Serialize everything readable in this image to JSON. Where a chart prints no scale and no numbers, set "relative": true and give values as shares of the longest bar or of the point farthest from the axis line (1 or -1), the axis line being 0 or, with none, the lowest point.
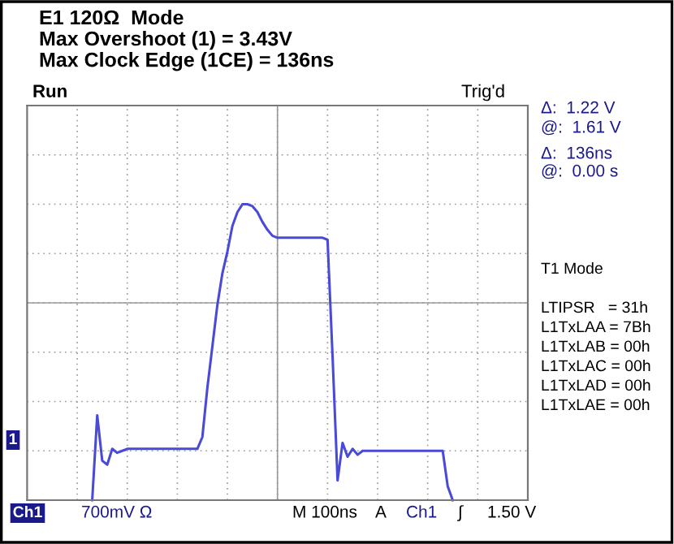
{
  "chart_data": {
    "type": "line",
    "relative": true,
    "title": "E1 120Ω  Mode",
    "subtitle": "Max Overshoot (1) = 3.43V\nMax Clock Edge (1CE) = 136ns",
    "categories": [
      null,
      null,
      null,
      null,
      null,
      null,
      null,
      null,
      null,
      null,
      null,
      null,
      null,
      null,
      null,
      null,
      null,
      null,
      null,
      null,
      null,
      null,
      null,
      null,
      null,
      null,
      null,
      null,
      null,
      null,
      null,
      null,
      null,
      null,
      null,
      null,
      null,
      null,
      null,
      null,
      null,
      null,
      null,
      null,
      null,
      null,
      null,
      null,
      null,
      null,
      null,
      null,
      null,
      null,
      null,
      null,
      null,
      null,
      null,
      null,
      null,
      null,
      null,
      null,
      null,
      null,
      null,
      null,
      null,
      null,
      null,
      null,
      null,
      null,
      null,
      null,
      null,
      null,
      null,
      null,
      null,
      null,
      null,
      null,
      null,
      null,
      null,
      null,
      null,
      null,
      null,
      null,
      null,
      null,
      null,
      null,
      null,
      null,
      null,
      null,
      null
    ],
    "series": [
      {
        "color": "#4a4ad8",
        "values": [
          null,
          null,
          null,
          null,
          null,
          null,
          null,
          null,
          null,
          null,
          null,
          null,
          null,
          -1,
          -0.57,
          -0.8,
          -0.82,
          -0.74,
          -0.76,
          -0.75,
          -0.74,
          -0.74,
          -0.74,
          -0.74,
          -0.74,
          -0.74,
          -0.74,
          -0.74,
          -0.74,
          -0.74,
          -0.74,
          -0.74,
          -0.74,
          -0.74,
          -0.74,
          -0.68,
          -0.43,
          -0.22,
          -0.01,
          0.15,
          0.26,
          0.39,
          0.46,
          0.5,
          0.5,
          0.49,
          0.46,
          0.41,
          0.37,
          0.34,
          0.33,
          0.33,
          0.33,
          0.33,
          0.33,
          0.33,
          0.33,
          0.33,
          0.33,
          0.33,
          0.32,
          -0.27,
          -0.9,
          -0.71,
          -0.78,
          -0.74,
          -0.77,
          -0.75,
          -0.75,
          -0.75,
          -0.75,
          -0.75,
          -0.75,
          -0.75,
          -0.75,
          -0.75,
          -0.75,
          -0.75,
          -0.75,
          -0.75,
          -0.75,
          -0.75,
          -0.75,
          -0.75,
          -0.93,
          -1,
          null,
          null,
          null,
          null,
          null,
          null,
          null,
          null,
          null,
          null,
          null,
          null,
          null,
          null,
          null
        ]
      }
    ],
    "grid": true,
    "legend": false,
    "annotations": [
      "Run",
      "Trig'd",
      "1",
      "Ch1",
      "700mV Ω",
      "M 100ns",
      "A",
      "Ch1",
      "∫",
      "1.50 V",
      "Δ:  1.22 V",
      "@:  1.61 V",
      "Δ:  136ns",
      "@:  0.00 s",
      "T1 Mode",
      "LTIPSR   = 31h",
      "L1TxLAA = 7Bh",
      "L1TxLAB = 00h",
      "L1TxLAC = 00h",
      "L1TxLAD = 00h",
      "L1TxLAE = 00h"
    ]
  }
}
